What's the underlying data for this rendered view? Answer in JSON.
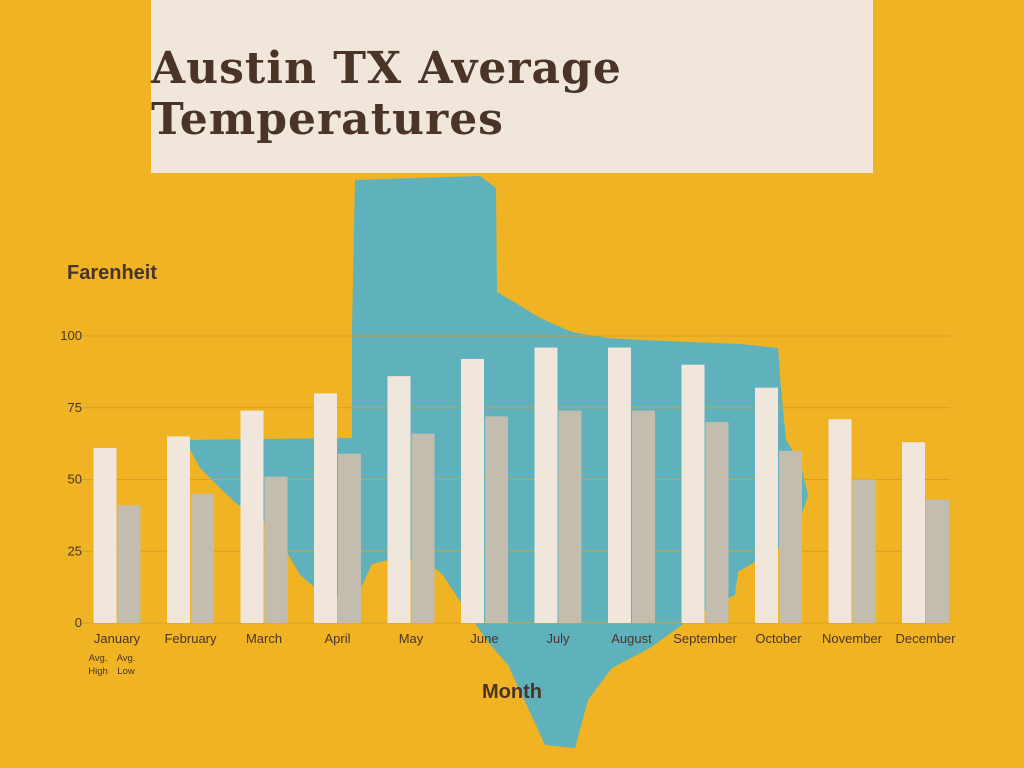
{
  "colors": {
    "background": "#efb324",
    "title_box": "#f0e6db",
    "texas_shape": "#5fb1bb",
    "avg_high_bar": "#f0e6db",
    "avg_low_bar": "#c2bdaf",
    "text": "#4a3428",
    "gridline": "#d9a01f"
  },
  "icons": {
    "background_shape": "texas-state-map-icon"
  },
  "chart_data": {
    "type": "bar",
    "title": "Austin TX Average Temperatures",
    "xlabel": "Month",
    "ylabel": "Farenheit",
    "ylim": [
      0,
      100
    ],
    "yticks": [
      0,
      25,
      50,
      75,
      100
    ],
    "grid": true,
    "categories": [
      "January",
      "February",
      "March",
      "April",
      "May",
      "June",
      "July",
      "August",
      "September",
      "October",
      "November",
      "December"
    ],
    "series": [
      {
        "name": "Avg. High",
        "legend_lines": [
          "Avg.",
          "High"
        ],
        "values": [
          61,
          65,
          74,
          80,
          86,
          92,
          96,
          96,
          90,
          82,
          71,
          63
        ]
      },
      {
        "name": "Avg. Low",
        "legend_lines": [
          "Avg.",
          "Low"
        ],
        "values": [
          41,
          45,
          51,
          59,
          66,
          72,
          74,
          74,
          70,
          60,
          50,
          43
        ]
      }
    ]
  }
}
